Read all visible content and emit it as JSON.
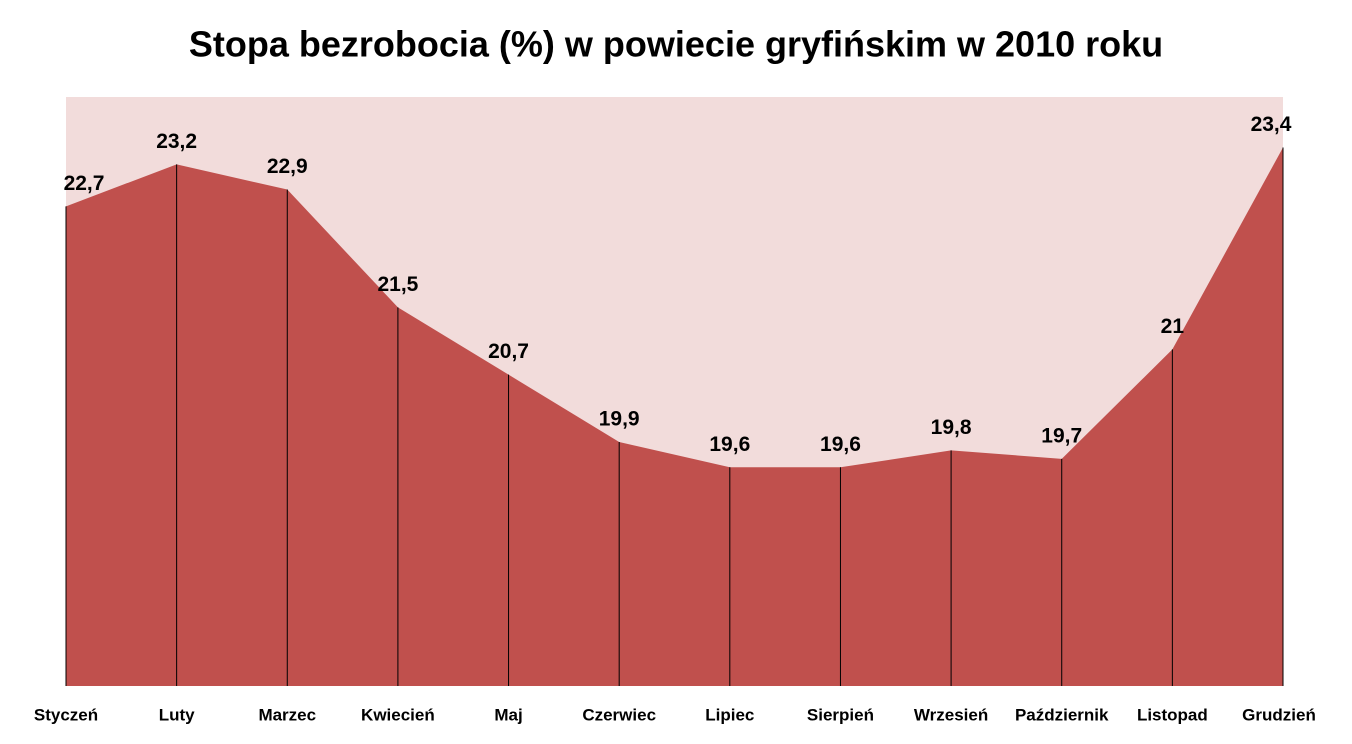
{
  "chart_data": {
    "type": "area",
    "title": "Stopa bezrobocia (%) w powiecie gryfińskim w 2010 roku",
    "categories": [
      "Styczeń",
      "Luty",
      "Marzec",
      "Kwiecień",
      "Maj",
      "Czerwiec",
      "Lipiec",
      "Sierpień",
      "Wrzesień",
      "Październik",
      "Listopad",
      "Grudzień"
    ],
    "values": [
      22.7,
      23.2,
      22.9,
      21.5,
      20.7,
      19.9,
      19.6,
      19.6,
      19.8,
      19.7,
      21,
      23.4
    ],
    "value_labels": [
      "22,7",
      "23,2",
      "22,9",
      "21,5",
      "20,7",
      "19,9",
      "19,6",
      "19,6",
      "19,8",
      "19,7",
      "21",
      "23,4"
    ],
    "color": "#c0504d",
    "plot_background": "#f2dcdb",
    "ylim": [
      17,
      24
    ]
  }
}
